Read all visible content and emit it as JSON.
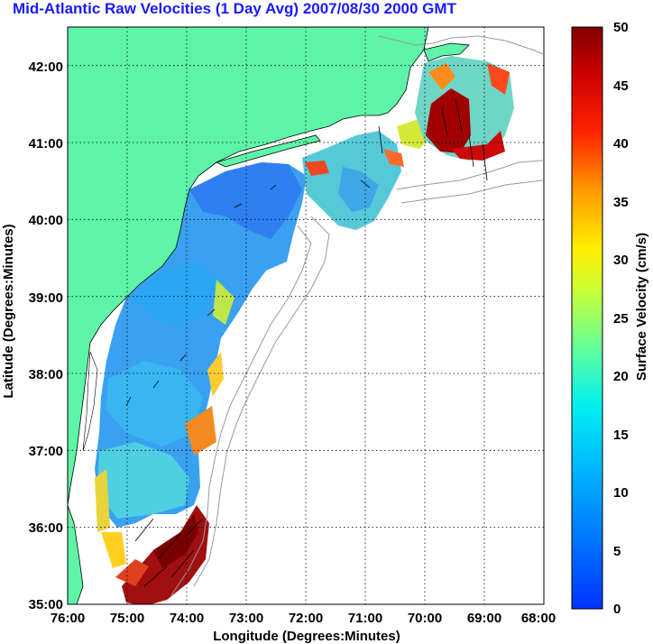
{
  "title": "Mid-Atlantic Raw Velocities (1 Day Avg) 2007/08/30 2000 GMT",
  "x_axis": {
    "label": "Longitude (Degrees:Minutes)",
    "ticks": [
      "76:00",
      "75:00",
      "74:00",
      "73:00",
      "72:00",
      "71:00",
      "70:00",
      "69:00",
      "68:00"
    ]
  },
  "y_axis": {
    "label": "Latitude (Degrees:Minutes)",
    "ticks": [
      "35:00",
      "36:00",
      "37:00",
      "38:00",
      "39:00",
      "40:00",
      "41:00",
      "42:00"
    ]
  },
  "colorbar": {
    "label": "Surface Velocity (cm/s)",
    "ticks": [
      "0",
      "5",
      "10",
      "15",
      "20",
      "25",
      "30",
      "35",
      "40",
      "45",
      "50"
    ],
    "range": [
      0,
      50
    ],
    "colormap": "jet"
  },
  "colors": {
    "land": "#5ef5a8",
    "title": "#1a1aff",
    "coastline": "#000000",
    "bathymetry": "#9a9a9a",
    "grid": "#000000"
  },
  "map_extent": {
    "lon_range": [
      -76,
      -68
    ],
    "lat_range": [
      35,
      42.5
    ]
  }
}
